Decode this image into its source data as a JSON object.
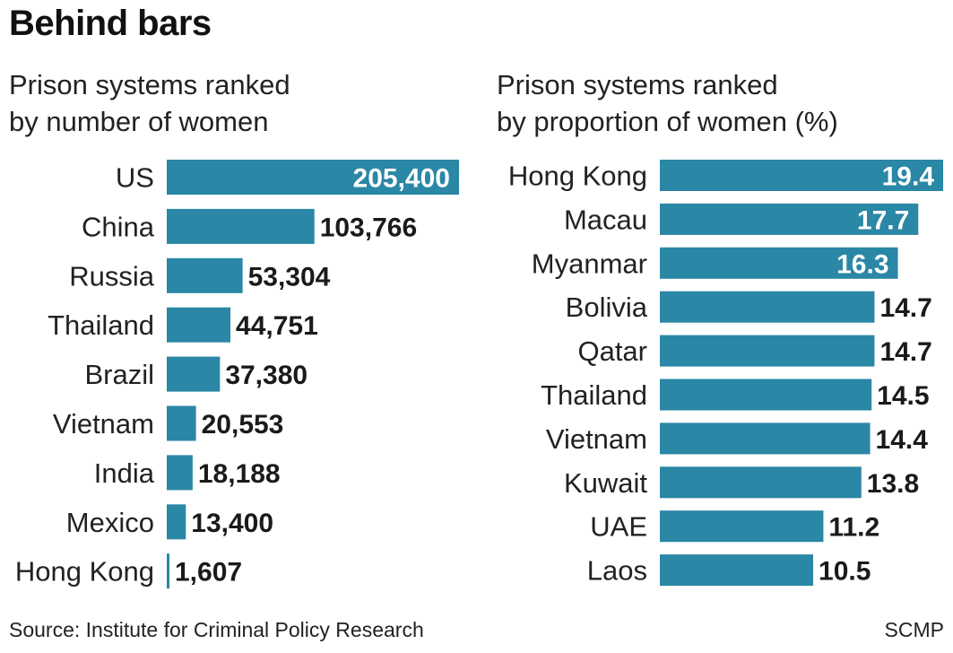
{
  "title": "Behind bars",
  "source": "Source: Institute for Criminal Policy Research",
  "credit": "SCMP",
  "colors": {
    "bar": "#2a87a5",
    "label_dark": "#1a1a1a",
    "label_light": "#ffffff"
  },
  "chart_data": [
    {
      "type": "bar",
      "orientation": "horizontal",
      "title": "Prison systems ranked\nby number of women",
      "categories": [
        "US",
        "China",
        "Russia",
        "Thailand",
        "Brazil",
        "Vietnam",
        "India",
        "Mexico",
        "Hong Kong"
      ],
      "values": [
        205400,
        103766,
        53304,
        44751,
        37380,
        20553,
        18188,
        13400,
        1607
      ],
      "value_labels": [
        "205,400",
        "103,766",
        "53,304",
        "44,751",
        "37,380",
        "20,553",
        "18,188",
        "13,400",
        "1,607"
      ],
      "xlim": [
        0,
        205400
      ],
      "grid": false
    },
    {
      "type": "bar",
      "orientation": "horizontal",
      "title": "Prison systems ranked\nby proportion of women (%)",
      "categories": [
        "Hong Kong",
        "Macau",
        "Myanmar",
        "Bolivia",
        "Qatar",
        "Thailand",
        "Vietnam",
        "Kuwait",
        "UAE",
        "Laos"
      ],
      "values": [
        19.4,
        17.7,
        16.3,
        14.7,
        14.7,
        14.5,
        14.4,
        13.8,
        11.2,
        10.5
      ],
      "value_labels": [
        "19.4",
        "17.7",
        "16.3",
        "14.7",
        "14.7",
        "14.5",
        "14.4",
        "13.8",
        "11.2",
        "10.5"
      ],
      "xlim": [
        0,
        19.4
      ],
      "grid": false
    }
  ]
}
